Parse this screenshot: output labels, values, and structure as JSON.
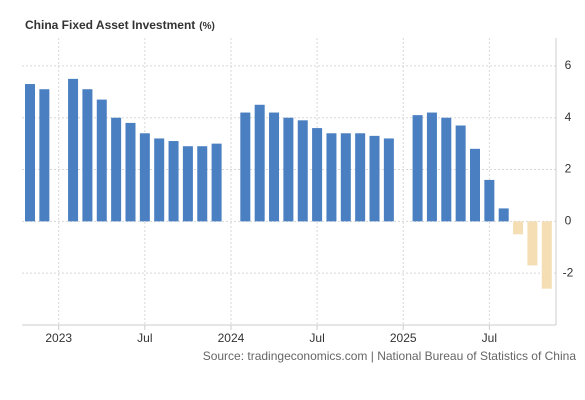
{
  "chart_data": {
    "type": "bar",
    "title": "China Fixed Asset Investment",
    "unit": "(%)",
    "source": "Source: tradingeconomics.com | National Bureau of Statistics of China",
    "categories": [
      null,
      null,
      "2023",
      null,
      null,
      null,
      null,
      null,
      "Jul",
      null,
      null,
      null,
      null,
      null,
      "2024",
      null,
      null,
      null,
      null,
      null,
      "Jul",
      null,
      null,
      null,
      null,
      null,
      "2025",
      null,
      null,
      null,
      null,
      null,
      "Jul",
      null,
      null,
      null,
      null
    ],
    "values": [
      5.3,
      5.1,
      null,
      5.5,
      5.1,
      4.7,
      4.0,
      3.8,
      3.4,
      3.2,
      3.1,
      2.9,
      2.9,
      3.0,
      null,
      4.2,
      4.5,
      4.2,
      4.0,
      3.9,
      3.6,
      3.4,
      3.4,
      3.4,
      3.3,
      3.2,
      null,
      4.1,
      4.2,
      4.0,
      3.7,
      2.8,
      1.6,
      0.5,
      -0.5,
      -1.7,
      -2.6
    ],
    "color": "#4a7fc1",
    "negative_color": "#f5deb3",
    "ylim": [
      -4,
      7
    ],
    "yticks": [
      -2,
      0,
      2,
      4,
      6
    ],
    "grid": true
  }
}
